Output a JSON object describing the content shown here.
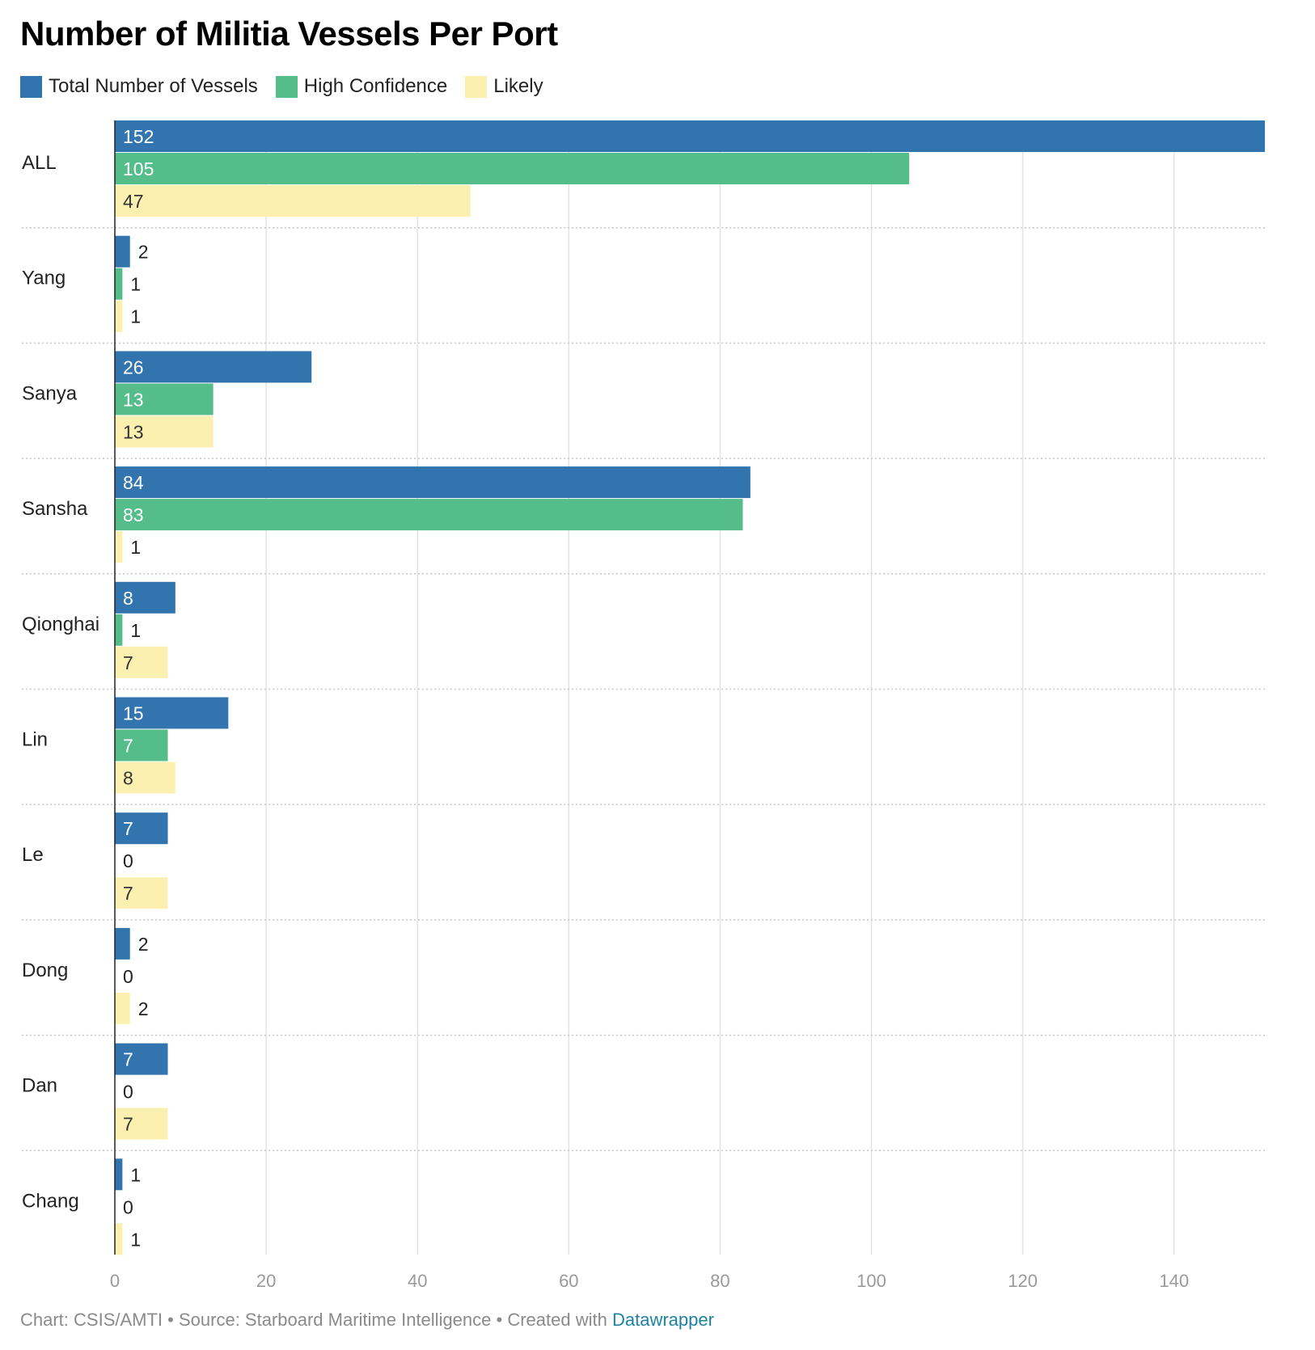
{
  "chart_data": {
    "type": "bar",
    "orientation": "horizontal",
    "title": "Number of Militia Vessels Per Port",
    "categories": [
      "ALL",
      "Yang",
      "Sanya",
      "Sansha",
      "Qionghai",
      "Lin",
      "Le",
      "Dong",
      "Dan",
      "Chang"
    ],
    "series": [
      {
        "name": "Total Number of Vessels",
        "color": "#3274ad",
        "label_color_inside": "#ffffff",
        "values": [
          152,
          2,
          26,
          84,
          8,
          15,
          7,
          2,
          7,
          1
        ]
      },
      {
        "name": "High Confidence",
        "color": "#54bd8a",
        "label_color_inside": "#ffffff",
        "values": [
          105,
          1,
          13,
          83,
          1,
          7,
          0,
          0,
          0,
          0
        ]
      },
      {
        "name": "Likely",
        "color": "#fbf0b0",
        "label_color_inside": "#333333",
        "values": [
          47,
          1,
          13,
          1,
          7,
          8,
          7,
          2,
          7,
          1
        ]
      }
    ],
    "xlim": [
      0,
      152
    ],
    "xticks": [
      0,
      20,
      40,
      60,
      80,
      100,
      120,
      140
    ],
    "xlabel": "",
    "ylabel": "",
    "grid": true,
    "legend_position": "top-left"
  },
  "footer": {
    "chart_credit": "Chart: CSIS/AMTI",
    "separator": " • ",
    "source": "Source: Starboard Maritime Intelligence",
    "created_with": "Created with",
    "tool": "Datawrapper"
  }
}
